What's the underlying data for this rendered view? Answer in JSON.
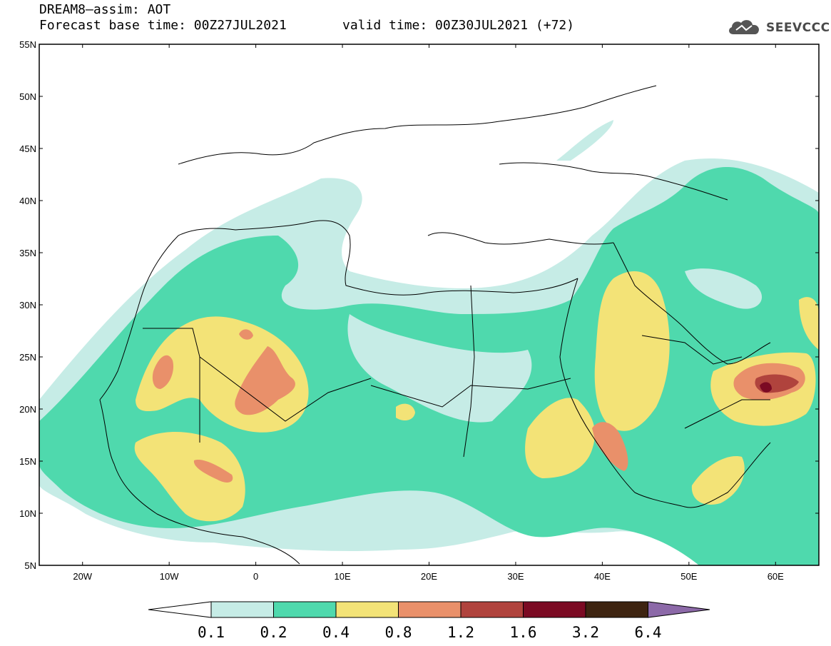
{
  "header": {
    "title_line1": "DREAM8–assim: AOT",
    "title_line2": "Forecast base time: 00Z27JUL2021",
    "valid_time": "valid time: 00Z30JUL2021 (+72)",
    "logo_text": "SEEVCCC"
  },
  "map": {
    "lat_labels": [
      "55N",
      "50N",
      "45N",
      "40N",
      "35N",
      "30N",
      "25N",
      "20N",
      "15N",
      "10N",
      "5N"
    ],
    "lon_labels": [
      "20W",
      "10W",
      "0",
      "10E",
      "20E",
      "30E",
      "40E",
      "50E",
      "60E"
    ],
    "lat_range": [
      5,
      55
    ],
    "lon_range": [
      -25,
      65
    ]
  },
  "colorbar": {
    "labels": [
      "0.1",
      "0.2",
      "0.4",
      "0.8",
      "1.2",
      "1.6",
      "3.2",
      "6.4"
    ],
    "colors": [
      "#ffffff",
      "#c6ece6",
      "#4fd9ad",
      "#f3e377",
      "#e9906a",
      "#b0433d",
      "#7b0a23",
      "#3e2411",
      "#8c69a8"
    ],
    "color_names": [
      "below 0.1",
      "0.1-0.2",
      "0.2-0.4",
      "0.4-0.8",
      "0.8-1.2",
      "1.2-1.6",
      "1.6-3.2",
      "3.2-6.4",
      "above 6.4"
    ]
  }
}
